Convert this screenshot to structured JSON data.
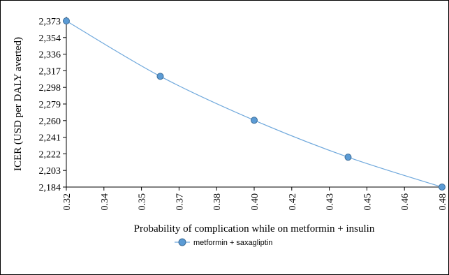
{
  "chart_data": {
    "type": "line",
    "title": "",
    "xlabel": "Probability of complication while on metformin + insulin",
    "ylabel": "ICER (USD per DALY averted)",
    "x_ticks": [
      "0.32",
      "0.34",
      "0.35",
      "0.37",
      "0.38",
      "0.40",
      "0.42",
      "0.43",
      "0.45",
      "0.46",
      "0.48"
    ],
    "y_ticks": [
      "2,184",
      "2,203",
      "2,222",
      "2,241",
      "2,260",
      "2,279",
      "2,298",
      "2,317",
      "2,336",
      "2,354",
      "2,373"
    ],
    "xlim": [
      0.32,
      0.48
    ],
    "ylim": [
      2184,
      2373
    ],
    "grid": false,
    "legend_position": "bottom",
    "series": [
      {
        "name": "metformin + saxagliptin",
        "color": "#6fa8dc",
        "marker_color": "#5b9bd5",
        "x": [
          0.32,
          0.36,
          0.4,
          0.44,
          0.48
        ],
        "y": [
          2373,
          2310,
          2260,
          2218,
          2184
        ]
      }
    ]
  }
}
